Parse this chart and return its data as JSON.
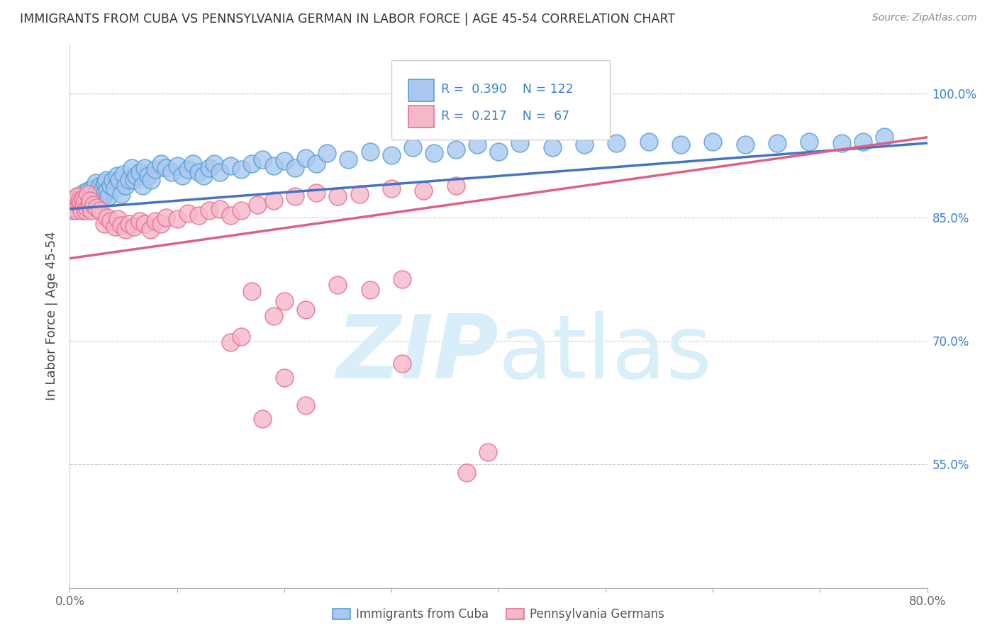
{
  "title": "IMMIGRANTS FROM CUBA VS PENNSYLVANIA GERMAN IN LABOR FORCE | AGE 45-54 CORRELATION CHART",
  "source": "Source: ZipAtlas.com",
  "ylabel": "In Labor Force | Age 45-54",
  "x_min": 0.0,
  "x_max": 0.8,
  "y_min": 0.4,
  "y_max": 1.06,
  "y_ticks_right": [
    0.55,
    0.7,
    0.85,
    1.0
  ],
  "y_tick_labels_right": [
    "55.0%",
    "70.0%",
    "85.0%",
    "100.0%"
  ],
  "color_blue": "#a8c8f0",
  "color_pink": "#f5b8ca",
  "color_blue_edge": "#5a9fd4",
  "color_pink_edge": "#e87090",
  "color_blue_line": "#4472c4",
  "color_pink_line": "#e06080",
  "color_blue_text": "#3a7fd5",
  "watermark_color": "#d8eef8",
  "blue_x": [
    0.003,
    0.004,
    0.005,
    0.006,
    0.007,
    0.008,
    0.009,
    0.01,
    0.011,
    0.012,
    0.013,
    0.013,
    0.014,
    0.015,
    0.016,
    0.017,
    0.018,
    0.019,
    0.02,
    0.021,
    0.022,
    0.023,
    0.024,
    0.025,
    0.026,
    0.027,
    0.028,
    0.029,
    0.03,
    0.031,
    0.032,
    0.033,
    0.034,
    0.035,
    0.036,
    0.038,
    0.04,
    0.042,
    0.044,
    0.046,
    0.048,
    0.05,
    0.052,
    0.055,
    0.058,
    0.06,
    0.062,
    0.065,
    0.068,
    0.07,
    0.073,
    0.076,
    0.08,
    0.085,
    0.09,
    0.095,
    0.1,
    0.105,
    0.11,
    0.115,
    0.12,
    0.125,
    0.13,
    0.135,
    0.14,
    0.15,
    0.16,
    0.17,
    0.18,
    0.19,
    0.2,
    0.21,
    0.22,
    0.23,
    0.24,
    0.26,
    0.28,
    0.3,
    0.32,
    0.34,
    0.36,
    0.38,
    0.4,
    0.42,
    0.45,
    0.48,
    0.51,
    0.54,
    0.57,
    0.6,
    0.63,
    0.66,
    0.69,
    0.72,
    0.74,
    0.76
  ],
  "blue_y": [
    0.858,
    0.865,
    0.87,
    0.862,
    0.875,
    0.86,
    0.868,
    0.872,
    0.865,
    0.875,
    0.868,
    0.88,
    0.862,
    0.87,
    0.878,
    0.882,
    0.868,
    0.875,
    0.878,
    0.885,
    0.868,
    0.875,
    0.892,
    0.87,
    0.882,
    0.875,
    0.888,
    0.88,
    0.872,
    0.885,
    0.878,
    0.892,
    0.895,
    0.882,
    0.875,
    0.888,
    0.895,
    0.885,
    0.9,
    0.895,
    0.878,
    0.902,
    0.888,
    0.895,
    0.91,
    0.895,
    0.9,
    0.905,
    0.888,
    0.91,
    0.9,
    0.895,
    0.908,
    0.915,
    0.91,
    0.905,
    0.912,
    0.9,
    0.908,
    0.915,
    0.905,
    0.9,
    0.91,
    0.915,
    0.905,
    0.912,
    0.908,
    0.915,
    0.92,
    0.912,
    0.918,
    0.91,
    0.922,
    0.915,
    0.928,
    0.92,
    0.93,
    0.925,
    0.935,
    0.928,
    0.932,
    0.938,
    0.93,
    0.94,
    0.935,
    0.938,
    0.94,
    0.942,
    0.938,
    0.942,
    0.938,
    0.94,
    0.942,
    0.94,
    0.942,
    0.948
  ],
  "pink_x": [
    0.003,
    0.005,
    0.006,
    0.007,
    0.008,
    0.009,
    0.01,
    0.011,
    0.012,
    0.013,
    0.014,
    0.015,
    0.016,
    0.017,
    0.018,
    0.019,
    0.02,
    0.022,
    0.025,
    0.028,
    0.032,
    0.035,
    0.038,
    0.042,
    0.045,
    0.048,
    0.052,
    0.055,
    0.06,
    0.065,
    0.07,
    0.075,
    0.08,
    0.085,
    0.09,
    0.1,
    0.11,
    0.12,
    0.13,
    0.14,
    0.15,
    0.16,
    0.175,
    0.19,
    0.21,
    0.23,
    0.25,
    0.27,
    0.3,
    0.33,
    0.36,
    0.25,
    0.28,
    0.31,
    0.19,
    0.22,
    0.17,
    0.2,
    0.15,
    0.16,
    0.31,
    0.2,
    0.22,
    0.18,
    0.39,
    0.37
  ],
  "pink_y": [
    0.862,
    0.87,
    0.858,
    0.875,
    0.865,
    0.87,
    0.868,
    0.858,
    0.872,
    0.865,
    0.87,
    0.858,
    0.862,
    0.878,
    0.865,
    0.87,
    0.858,
    0.865,
    0.862,
    0.858,
    0.842,
    0.85,
    0.845,
    0.838,
    0.848,
    0.84,
    0.835,
    0.842,
    0.838,
    0.845,
    0.842,
    0.835,
    0.845,
    0.842,
    0.85,
    0.848,
    0.855,
    0.852,
    0.858,
    0.86,
    0.852,
    0.858,
    0.865,
    0.87,
    0.875,
    0.88,
    0.875,
    0.878,
    0.885,
    0.882,
    0.888,
    0.768,
    0.762,
    0.775,
    0.73,
    0.738,
    0.76,
    0.748,
    0.698,
    0.705,
    0.672,
    0.655,
    0.622,
    0.605,
    0.565,
    0.54
  ],
  "blue_line_x0": 0.0,
  "blue_line_x1": 0.8,
  "blue_line_y0": 0.86,
  "blue_line_y1": 0.94,
  "pink_line_x0": 0.0,
  "pink_line_x1": 0.8,
  "pink_line_y0": 0.8,
  "pink_line_y1": 0.947
}
